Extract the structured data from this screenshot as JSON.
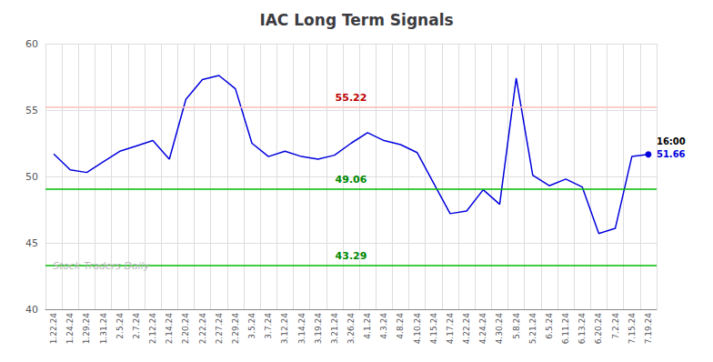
{
  "chart_data": {
    "type": "line",
    "title": "IAC Long Term Signals",
    "categories": [
      "1.22.24",
      "1.24.24",
      "1.29.24",
      "1.31.24",
      "2.5.24",
      "2.7.24",
      "2.12.24",
      "2.14.24",
      "2.20.24",
      "2.22.24",
      "2.27.24",
      "2.29.24",
      "3.5.24",
      "3.7.24",
      "3.12.24",
      "3.14.24",
      "3.19.24",
      "3.21.24",
      "3.26.24",
      "4.1.24",
      "4.3.24",
      "4.8.24",
      "4.10.24",
      "4.15.24",
      "4.17.24",
      "4.22.24",
      "4.24.24",
      "4.30.24",
      "5.8.24",
      "5.21.24",
      "6.5.24",
      "6.11.24",
      "6.13.24",
      "6.20.24",
      "7.2.24",
      "7.15.24",
      "7.19.24"
    ],
    "values": [
      51.7,
      50.5,
      50.3,
      51.1,
      51.9,
      52.3,
      52.7,
      51.3,
      55.8,
      57.3,
      57.6,
      56.6,
      52.5,
      51.5,
      51.9,
      51.5,
      51.3,
      51.6,
      52.5,
      53.3,
      52.7,
      52.4,
      51.8,
      49.5,
      47.2,
      47.4,
      49.0,
      47.9,
      57.4,
      50.1,
      49.3,
      49.8,
      49.2,
      45.7,
      46.1,
      51.5,
      51.66
    ],
    "color": "#0000dd",
    "ylim": [
      40,
      60
    ],
    "yticks": [
      40,
      45,
      50,
      55,
      60
    ],
    "grid": true,
    "hlines": [
      {
        "value": 55.22,
        "label": "55.22",
        "color": "#ffbbbb",
        "label_color": "#bb0000"
      },
      {
        "value": 49.06,
        "label": "49.06",
        "color": "#00bb00",
        "label_color": "#008800"
      },
      {
        "value": 43.29,
        "label": "43.29",
        "color": "#00bb00",
        "label_color": "#008800"
      }
    ],
    "annotations": [
      {
        "text": "16:00",
        "color": "#000000"
      },
      {
        "text": "51.66",
        "color": "#0000dd"
      }
    ],
    "watermark": {
      "text": "Stock Traders Daily",
      "color": "#bbbbbb"
    }
  }
}
